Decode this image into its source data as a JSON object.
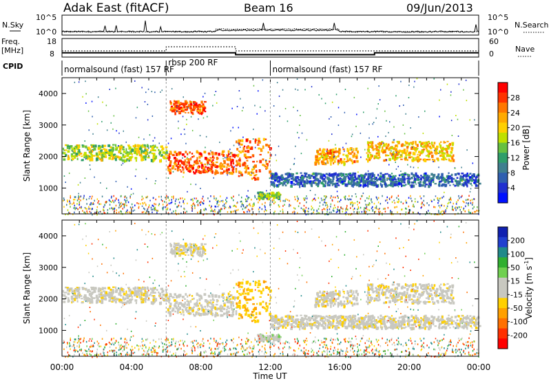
{
  "header": {
    "title": "Adak East (fitACF)",
    "beam": "Beam 16",
    "date": "09/Jun/2013"
  },
  "panels": {
    "nsky_label": "N.Sky",
    "nsky_ticks": [
      "10^5",
      "10^0"
    ],
    "nsearch_label": "N.Search",
    "nsearch_ticks": [
      "10^5",
      "10^0"
    ],
    "freq_label": "Freq.",
    "freq_unit": "[MHz]",
    "freq_ticks": [
      "18",
      "8"
    ],
    "nave_label": "Nave",
    "nave_ticks": [
      "60",
      "0"
    ],
    "cpid_label": "CPID",
    "cpid_segments": [
      {
        "name": "normalsound (fast) 157 RF",
        "start_h": 0,
        "end_h": 6
      },
      {
        "name": "rbsp 200 RF",
        "start_h": 6,
        "end_h": 12
      },
      {
        "name": "normalsound (fast) 157 RF",
        "start_h": 12,
        "end_h": 24
      }
    ]
  },
  "power_colorbar": {
    "label": "Power [dB]",
    "ticks": [
      "28",
      "24",
      "20",
      "16",
      "12",
      "8",
      "4"
    ],
    "colors": [
      "#ff0000",
      "#ff3300",
      "#ff7700",
      "#ffaa00",
      "#ffd000",
      "#bfe000",
      "#66c040",
      "#2f9e6a",
      "#3f7f8f",
      "#2f5fb0",
      "#2030d0",
      "#0010ff"
    ]
  },
  "velocity_colorbar": {
    "label_main": "Velocity [m s",
    "label_sup": "-1",
    "label_end": "]",
    "ticks": [
      "200",
      "100",
      "50",
      "15",
      "-15",
      "-50",
      "-100",
      "-200"
    ],
    "colors": [
      "#1020b0",
      "#2040d0",
      "#208a8a",
      "#30b030",
      "#70d050",
      "#c8c8c0",
      "#c8c8c0",
      "#ffd000",
      "#ffa000",
      "#ff7000",
      "#ff3000",
      "#ff0000"
    ]
  },
  "chart_data": {
    "type": "heatmap",
    "xlabel": "Time UT",
    "x_ticks": [
      "00:00",
      "04:00",
      "08:00",
      "12:00",
      "16:00",
      "20:00",
      "00:00"
    ],
    "xlim_hours": [
      0,
      24
    ],
    "ylabel_power": "Slant Range [km]",
    "ylabel_velocity": "Slant Range [km]",
    "y_ticks": [
      "4000",
      "3000",
      "2000",
      "1000"
    ],
    "ylim_km": [
      180,
      4500
    ],
    "frequency_mhz": [
      {
        "start_h": 0,
        "end_h": 6,
        "value": 10.5
      },
      {
        "start_h": 6,
        "end_h": 10,
        "value": 10.5
      },
      {
        "start_h": 10,
        "end_h": 18,
        "value": 9.5
      },
      {
        "start_h": 18,
        "end_h": 24,
        "value": 10.5
      }
    ],
    "scatter_bands": [
      {
        "start_h": 0,
        "end_h": 6,
        "range_km": [
          1900,
          2400
        ],
        "power_db": 16,
        "velocity": -5
      },
      {
        "start_h": 6,
        "end_h": 10,
        "range_km": [
          1500,
          2200
        ],
        "power_db": 26,
        "velocity": -5
      },
      {
        "start_h": 6.2,
        "end_h": 8.2,
        "range_km": [
          3400,
          3800
        ],
        "power_db": 26,
        "velocity": -5
      },
      {
        "start_h": 10,
        "end_h": 12,
        "range_km": [
          1300,
          2600
        ],
        "power_db": 24,
        "velocity": -40
      },
      {
        "start_h": 11.2,
        "end_h": 12.5,
        "range_km": [
          700,
          900
        ],
        "power_db": 14,
        "velocity": 40
      },
      {
        "start_h": 14.5,
        "end_h": 17,
        "range_km": [
          1800,
          2300
        ],
        "power_db": 22,
        "velocity": -5
      },
      {
        "start_h": 17.5,
        "end_h": 22.5,
        "range_km": [
          1900,
          2500
        ],
        "power_db": 20,
        "velocity": -5
      },
      {
        "start_h": 12,
        "end_h": 24,
        "range_km": [
          1100,
          1500
        ],
        "power_db": 6,
        "velocity": -5
      }
    ]
  }
}
